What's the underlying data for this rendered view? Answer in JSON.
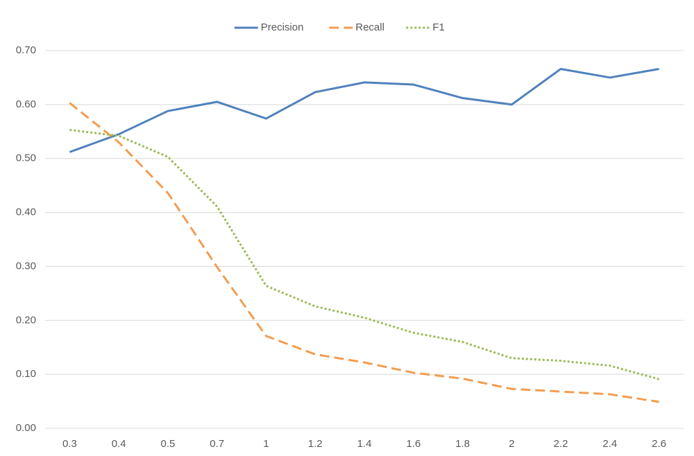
{
  "chart_data": {
    "type": "line",
    "categories": [
      "0.3",
      "0.4",
      "0.5",
      "0.7",
      "1",
      "1.2",
      "1.4",
      "1.6",
      "1.8",
      "2",
      "2.2",
      "2.4",
      "2.6"
    ],
    "series": [
      {
        "name": "Precision",
        "color": "#4f81bd",
        "dash": "solid",
        "values": [
          0.512,
          0.545,
          0.588,
          0.605,
          0.574,
          0.623,
          0.641,
          0.637,
          0.612,
          0.6,
          0.666,
          0.65,
          0.666
        ]
      },
      {
        "name": "Recall",
        "color": "#f39c4f",
        "dash": "dashed",
        "values": [
          0.603,
          0.53,
          0.436,
          0.299,
          0.171,
          0.137,
          0.122,
          0.103,
          0.092,
          0.073,
          0.068,
          0.063,
          0.049
        ]
      },
      {
        "name": "F1",
        "color": "#9bbb59",
        "dash": "dotted",
        "values": [
          0.553,
          0.542,
          0.503,
          0.411,
          0.264,
          0.226,
          0.205,
          0.177,
          0.16,
          0.13,
          0.125,
          0.116,
          0.091
        ]
      }
    ],
    "ylim": [
      0,
      0.7
    ],
    "yticks": [
      {
        "value": 0,
        "label": "0.00"
      },
      {
        "value": 0.1,
        "label": "0.10"
      },
      {
        "value": 0.2,
        "label": "0.20"
      },
      {
        "value": 0.3,
        "label": "0.30"
      },
      {
        "value": 0.4,
        "label": "0.40"
      },
      {
        "value": 0.5,
        "label": "0.50"
      },
      {
        "value": 0.6,
        "label": "0.60"
      },
      {
        "value": 0.7,
        "label": "0.70"
      }
    ],
    "grid": true,
    "legend": "top"
  }
}
